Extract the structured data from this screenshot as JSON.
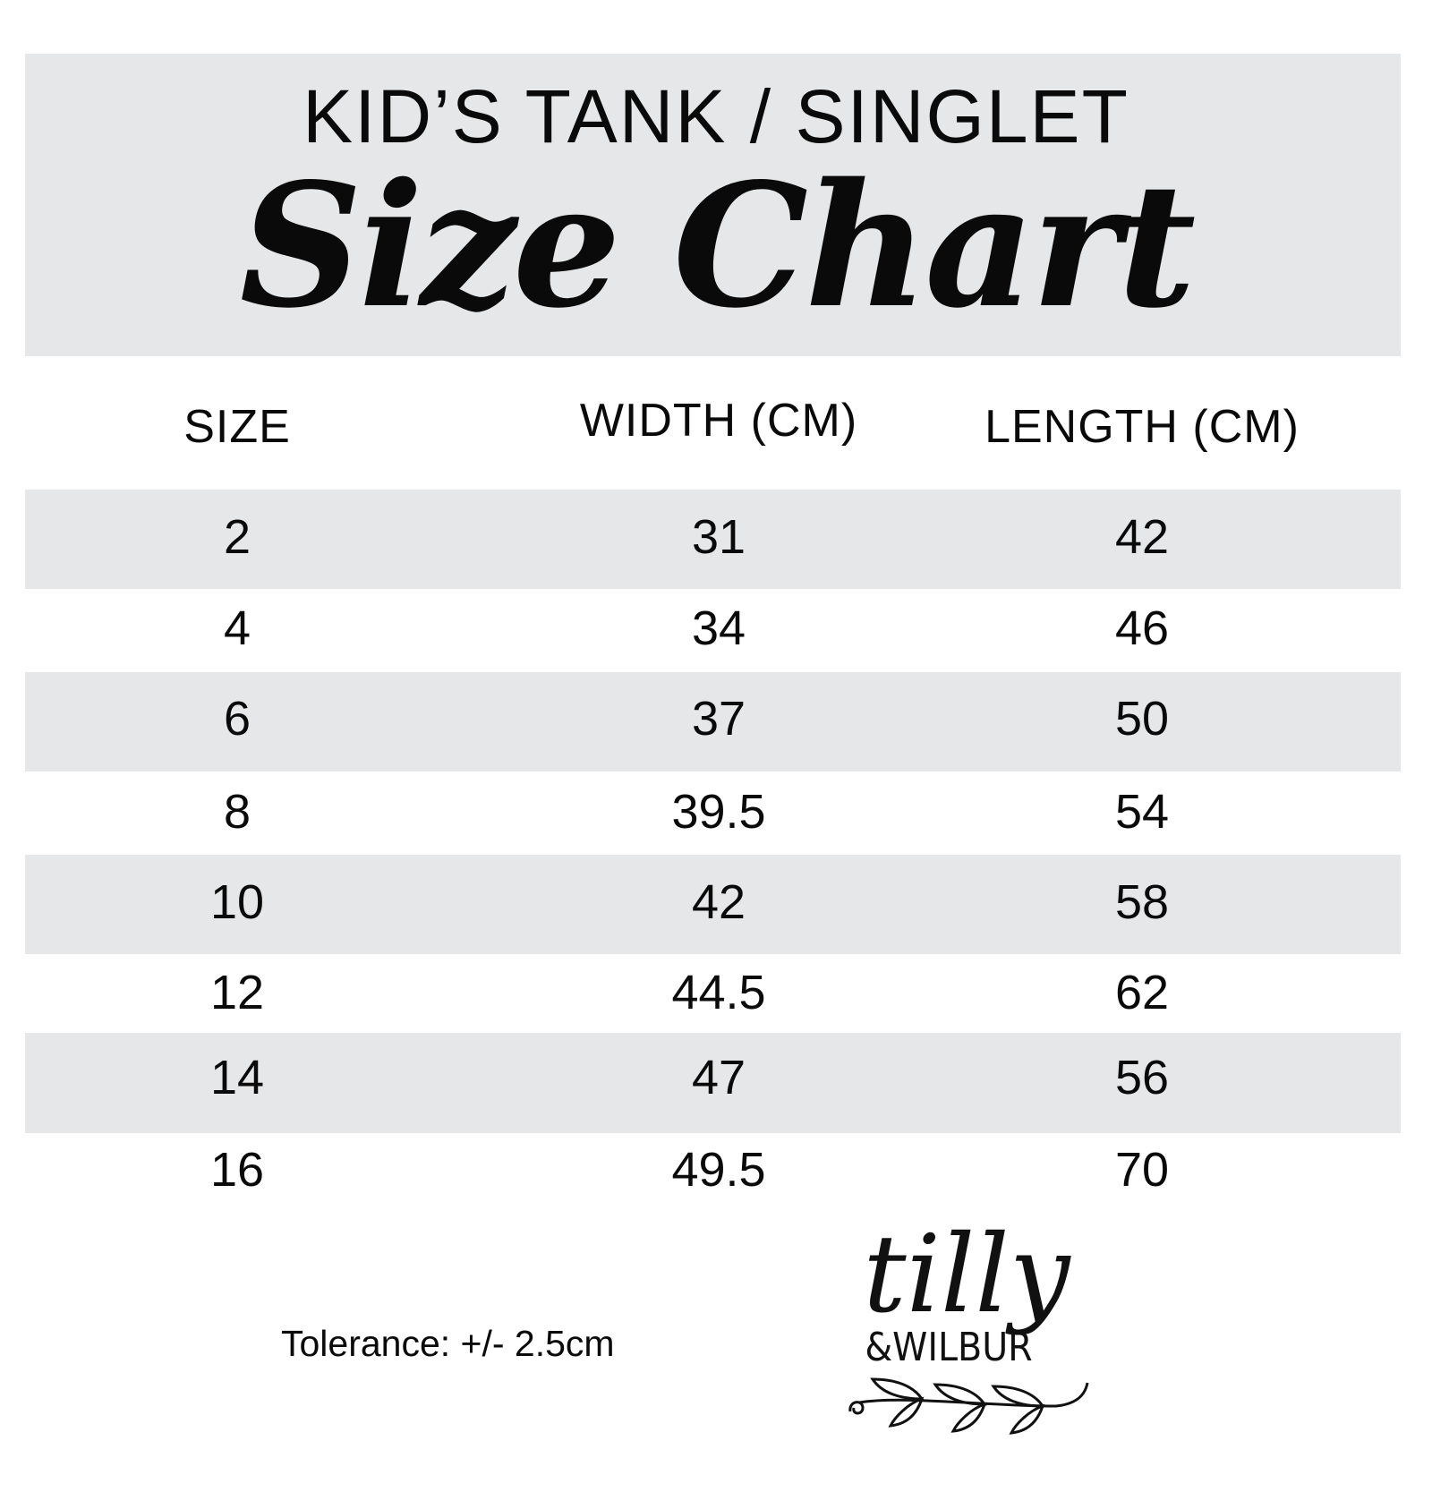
{
  "header": {
    "subtitle": "KID’S TANK / SINGLET",
    "title": "Size Chart"
  },
  "table": {
    "columns": [
      "SIZE",
      "WIDTH (CM)",
      "LENGTH (CM)"
    ],
    "rows": [
      [
        "2",
        "31",
        "42"
      ],
      [
        "4",
        "34",
        "46"
      ],
      [
        "6",
        "37",
        "50"
      ],
      [
        "8",
        "39.5",
        "54"
      ],
      [
        "10",
        "42",
        "58"
      ],
      [
        "12",
        "44.5",
        "62"
      ],
      [
        "14",
        "47",
        "56"
      ],
      [
        "16",
        "49.5",
        "70"
      ]
    ]
  },
  "footer": {
    "tolerance": "Tolerance: +/- 2.5cm"
  },
  "logo": {
    "line1": "tilly",
    "line2": "&WILBUR"
  },
  "colors": {
    "band": "#e6e7e8",
    "text": "#0a0a0a"
  }
}
